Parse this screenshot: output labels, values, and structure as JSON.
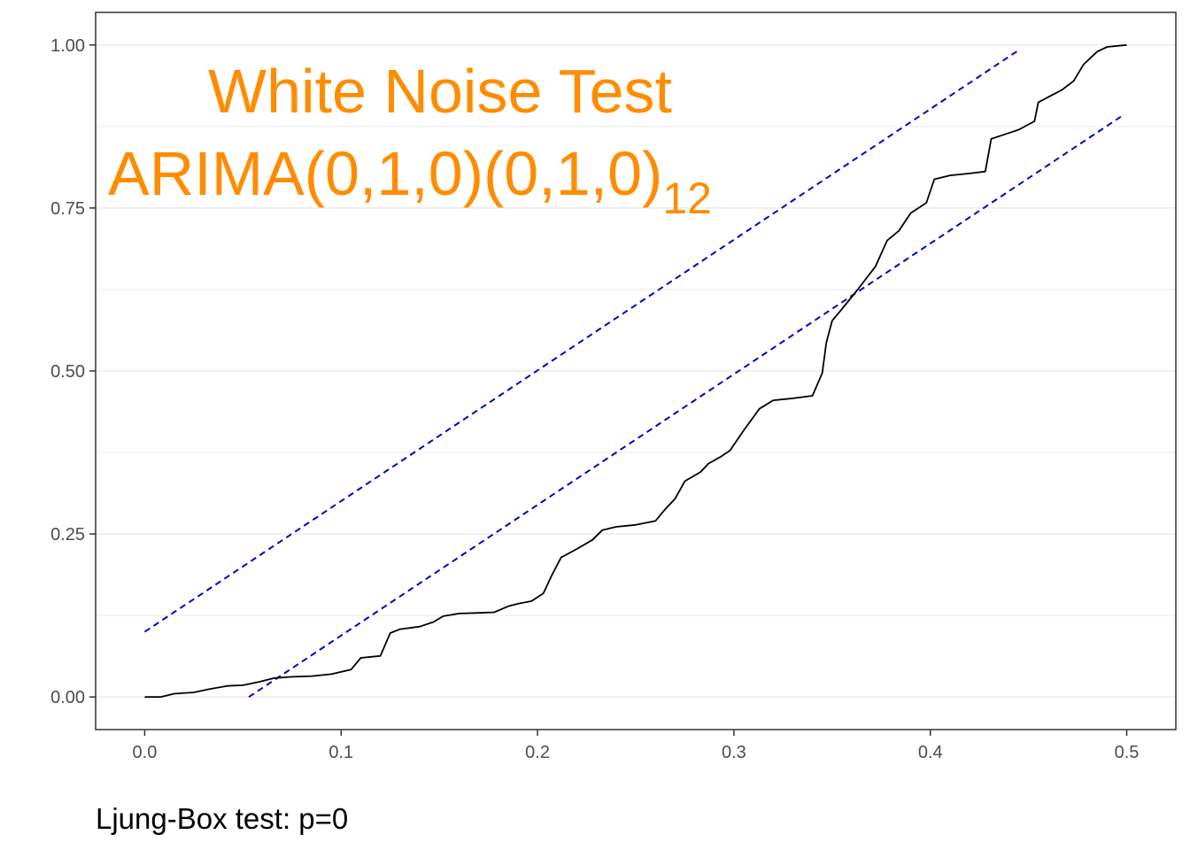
{
  "chart_data": {
    "type": "line",
    "title": "White Noise Test",
    "subtitle_main": "ARIMA(0,1,0)(0,1,0)",
    "subtitle_subscript": "12",
    "caption": "Ljung-Box test: p=0",
    "xlabel": "",
    "ylabel": "",
    "xlim": [
      -0.025,
      0.525
    ],
    "ylim": [
      -0.05,
      1.05
    ],
    "x_ticks": [
      0.0,
      0.1,
      0.2,
      0.3,
      0.4,
      0.5
    ],
    "x_tick_labels": [
      "0.0",
      "0.1",
      "0.2",
      "0.3",
      "0.4",
      "0.5"
    ],
    "y_ticks": [
      0.0,
      0.25,
      0.5,
      0.75,
      1.0
    ],
    "y_tick_labels": [
      "0.00",
      "0.25",
      "0.50",
      "0.75",
      "1.00"
    ],
    "grid": "horizontal",
    "colors": {
      "title": "#ff8c00",
      "series": "#000000",
      "bounds": "#0000cd",
      "grid": "#ebebeb"
    },
    "series": [
      {
        "values_xy": [
          [
            0.0,
            0.0
          ],
          [
            0.008,
            0.0
          ],
          [
            0.015,
            0.005
          ],
          [
            0.025,
            0.007
          ],
          [
            0.033,
            0.012
          ],
          [
            0.042,
            0.017
          ],
          [
            0.05,
            0.018
          ],
          [
            0.058,
            0.023
          ],
          [
            0.066,
            0.029
          ],
          [
            0.075,
            0.031
          ],
          [
            0.085,
            0.032
          ],
          [
            0.095,
            0.035
          ],
          [
            0.105,
            0.042
          ],
          [
            0.11,
            0.06
          ],
          [
            0.12,
            0.063
          ],
          [
            0.125,
            0.098
          ],
          [
            0.13,
            0.104
          ],
          [
            0.14,
            0.108
          ],
          [
            0.147,
            0.115
          ],
          [
            0.152,
            0.124
          ],
          [
            0.16,
            0.128
          ],
          [
            0.17,
            0.129
          ],
          [
            0.178,
            0.13
          ],
          [
            0.185,
            0.139
          ],
          [
            0.19,
            0.143
          ],
          [
            0.197,
            0.147
          ],
          [
            0.203,
            0.159
          ],
          [
            0.207,
            0.185
          ],
          [
            0.212,
            0.214
          ],
          [
            0.22,
            0.227
          ],
          [
            0.228,
            0.241
          ],
          [
            0.233,
            0.256
          ],
          [
            0.24,
            0.261
          ],
          [
            0.25,
            0.264
          ],
          [
            0.26,
            0.27
          ],
          [
            0.265,
            0.288
          ],
          [
            0.27,
            0.304
          ],
          [
            0.275,
            0.331
          ],
          [
            0.283,
            0.345
          ],
          [
            0.287,
            0.358
          ],
          [
            0.293,
            0.368
          ],
          [
            0.298,
            0.378
          ],
          [
            0.305,
            0.409
          ],
          [
            0.313,
            0.442
          ],
          [
            0.32,
            0.455
          ],
          [
            0.33,
            0.458
          ],
          [
            0.34,
            0.462
          ],
          [
            0.345,
            0.497
          ],
          [
            0.347,
            0.543
          ],
          [
            0.35,
            0.577
          ],
          [
            0.355,
            0.595
          ],
          [
            0.363,
            0.625
          ],
          [
            0.372,
            0.66
          ],
          [
            0.378,
            0.7
          ],
          [
            0.384,
            0.715
          ],
          [
            0.39,
            0.742
          ],
          [
            0.398,
            0.758
          ],
          [
            0.402,
            0.794
          ],
          [
            0.41,
            0.8
          ],
          [
            0.42,
            0.803
          ],
          [
            0.428,
            0.806
          ],
          [
            0.431,
            0.856
          ],
          [
            0.438,
            0.863
          ],
          [
            0.445,
            0.87
          ],
          [
            0.453,
            0.883
          ],
          [
            0.455,
            0.912
          ],
          [
            0.46,
            0.92
          ],
          [
            0.467,
            0.931
          ],
          [
            0.473,
            0.945
          ],
          [
            0.478,
            0.97
          ],
          [
            0.485,
            0.99
          ],
          [
            0.49,
            0.997
          ],
          [
            0.5,
            1.0
          ]
        ]
      }
    ],
    "bounds": [
      {
        "x": [
          0.0,
          0.444
        ],
        "y": [
          0.1,
          0.99
        ]
      },
      {
        "x": [
          0.053,
          0.497
        ],
        "y": [
          0.0,
          0.89
        ]
      }
    ]
  }
}
